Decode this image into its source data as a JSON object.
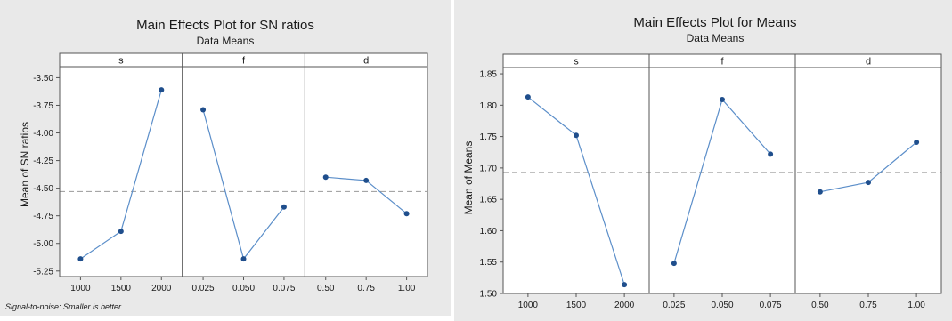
{
  "chart_data": [
    {
      "type": "line",
      "title": "Main Effects Plot for SN ratios",
      "subtitle": "Data Means",
      "ylabel": "Mean of SN ratios",
      "ylim": [
        -5.3,
        -3.4
      ],
      "yticks": [
        -5.25,
        -5.0,
        -4.75,
        -4.5,
        -4.25,
        -4.0,
        -3.75,
        -3.5
      ],
      "ytick_labels": [
        "-5.25",
        "-5.00",
        "-4.75",
        "-4.50",
        "-4.25",
        "-4.00",
        "-3.75",
        "-3.50"
      ],
      "reference_line": -4.53,
      "footnote": "Signal-to-noise: Smaller is better",
      "panels": [
        {
          "name": "s",
          "categories": [
            "1000",
            "1500",
            "2000"
          ],
          "values": [
            -5.14,
            -4.89,
            -3.61
          ]
        },
        {
          "name": "f",
          "categories": [
            "0.025",
            "0.050",
            "0.075"
          ],
          "values": [
            -3.79,
            -5.14,
            -4.67
          ]
        },
        {
          "name": "d",
          "categories": [
            "0.50",
            "0.75",
            "1.00"
          ],
          "values": [
            -4.4,
            -4.43,
            -4.73
          ]
        }
      ],
      "line_color": "#5b8ec9",
      "marker_color": "#1f4e8c"
    },
    {
      "type": "line",
      "title": "Main Effects Plot for Means",
      "subtitle": "Data Means",
      "ylabel": "Mean of Means",
      "ylim": [
        1.5,
        1.86
      ],
      "yticks": [
        1.5,
        1.55,
        1.6,
        1.65,
        1.7,
        1.75,
        1.8,
        1.85
      ],
      "ytick_labels": [
        "1.50",
        "1.55",
        "1.60",
        "1.65",
        "1.70",
        "1.75",
        "1.80",
        "1.85"
      ],
      "reference_line": 1.693,
      "panels": [
        {
          "name": "s",
          "categories": [
            "1000",
            "1500",
            "2000"
          ],
          "values": [
            1.813,
            1.752,
            1.514
          ]
        },
        {
          "name": "f",
          "categories": [
            "0.025",
            "0.050",
            "0.075"
          ],
          "values": [
            1.548,
            1.809,
            1.722
          ]
        },
        {
          "name": "d",
          "categories": [
            "0.50",
            "0.75",
            "1.00"
          ],
          "values": [
            1.662,
            1.677,
            1.741
          ]
        }
      ],
      "line_color": "#5b8ec9",
      "marker_color": "#1f4e8c"
    }
  ]
}
